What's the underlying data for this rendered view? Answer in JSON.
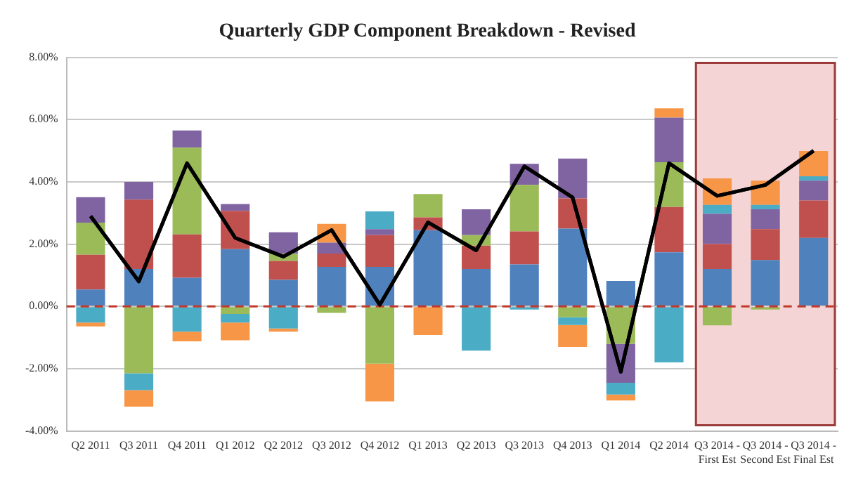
{
  "chart_data": {
    "type": "bar",
    "title": "Quarterly GDP Component Breakdown - Revised",
    "categories": [
      "Q2 2011",
      "Q3 2011",
      "Q4 2011",
      "Q1 2012",
      "Q2 2012",
      "Q3 2012",
      "Q4 2012",
      "Q1 2013",
      "Q2 2013",
      "Q3 2013",
      "Q4 2013",
      "Q1 2014",
      "Q2 2014",
      "Q3 2014 - First Est",
      "Q3 2014 - Second Est",
      "Q3 2014 - Final Est"
    ],
    "stacked": true,
    "series": [
      {
        "color": "#4f81bd",
        "values": [
          0.54,
          1.2,
          0.92,
          1.84,
          0.85,
          1.27,
          1.27,
          2.45,
          1.2,
          1.35,
          2.5,
          0.82,
          1.74,
          1.2,
          1.49,
          2.2
        ]
      },
      {
        "color": "#c0504d",
        "values": [
          1.12,
          2.23,
          1.39,
          1.23,
          0.61,
          0.43,
          1.02,
          0.41,
          0.75,
          1.06,
          0.97,
          0,
          1.45,
          0.8,
          0.99,
          1.2
        ]
      },
      {
        "color": "#9bbb59",
        "values": [
          1.03,
          -2.15,
          2.79,
          -0.24,
          0.23,
          -0.21,
          -1.84,
          0.75,
          0.34,
          1.49,
          -0.35,
          -1.2,
          1.44,
          -0.61,
          -0.1,
          0
        ]
      },
      {
        "color": "#8064a2",
        "values": [
          0.82,
          0.57,
          0.55,
          0.22,
          0.69,
          0.35,
          0.19,
          0,
          0.83,
          0.68,
          1.28,
          -1.25,
          1.43,
          0.97,
          0.64,
          0.64
        ]
      },
      {
        "color": "#4bacc6",
        "values": [
          -0.52,
          -0.54,
          -0.81,
          -0.28,
          -0.71,
          0,
          0.57,
          0,
          -1.42,
          -0.1,
          -0.25,
          -0.38,
          -1.8,
          0.29,
          0.14,
          0.14
        ]
      },
      {
        "color": "#f79646",
        "values": [
          -0.12,
          -0.53,
          -0.31,
          -0.57,
          -0.1,
          0.6,
          -1.21,
          -0.92,
          0,
          0,
          -0.7,
          -0.19,
          0.3,
          0.85,
          0.78,
          0.81
        ]
      },
      {
        "type": "line",
        "color": "#000000",
        "marker": "none",
        "line_style": "solid",
        "values": [
          2.9,
          0.8,
          4.6,
          2.2,
          1.6,
          2.45,
          0.05,
          2.7,
          1.8,
          4.5,
          3.5,
          -2.1,
          4.6,
          3.55,
          3.9,
          5.0
        ]
      }
    ],
    "ylim": [
      -4,
      8
    ],
    "yticks": [
      {
        "value": -4,
        "label": "-4.00%"
      },
      {
        "value": -2,
        "label": "-2.00%"
      },
      {
        "value": 0,
        "label": "0.00%"
      },
      {
        "value": 2,
        "label": "2.00%"
      },
      {
        "value": 4,
        "label": "4.00%"
      },
      {
        "value": 6,
        "label": "6.00%"
      },
      {
        "value": 8,
        "label": "8.00%"
      }
    ],
    "grid": "y",
    "legend": false,
    "ref_lines": [
      {
        "axis": "y",
        "value": 0,
        "color": "#c0392b",
        "line_style": "dashed"
      }
    ],
    "bands": [
      {
        "axis": "x",
        "from": "Q3 2014 - First Est",
        "to": "Q3 2014 - Final Est",
        "color": "#f4d4d4"
      }
    ]
  }
}
